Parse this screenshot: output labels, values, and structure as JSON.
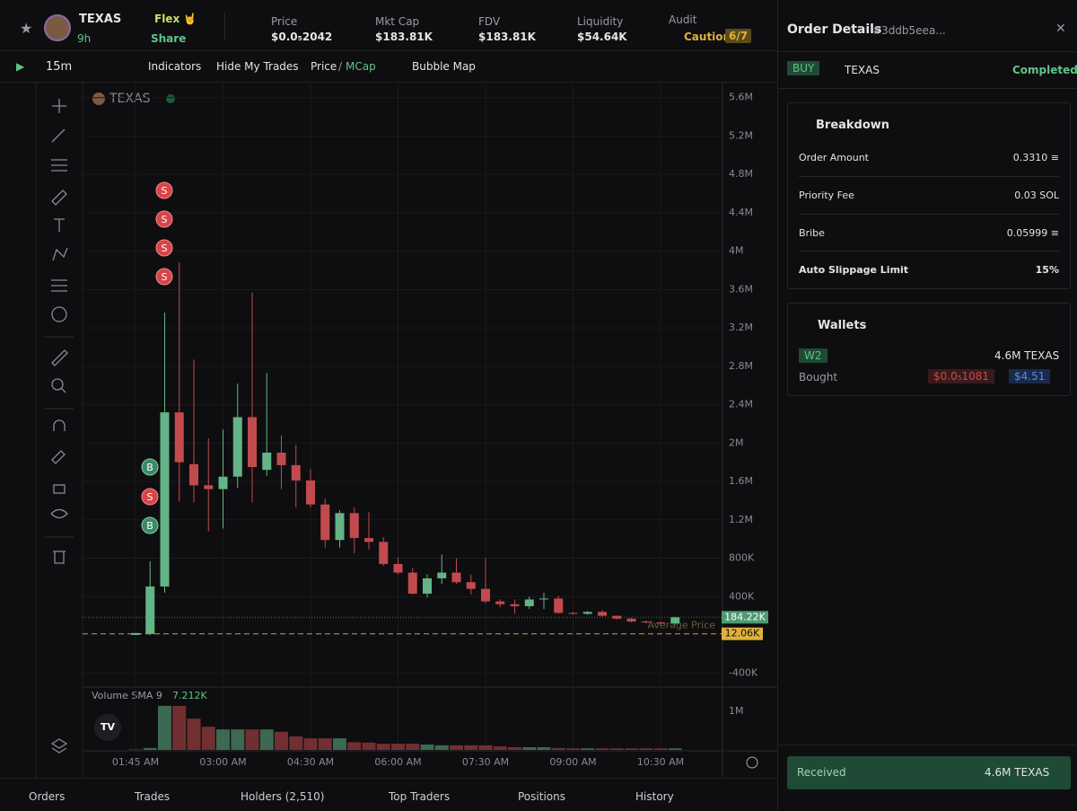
{
  "header": {
    "token": "TEXAS",
    "flex": "Flex 🤘",
    "age": "9h",
    "share": "Share",
    "stats": [
      {
        "label": "Price",
        "value": "$0.0₅2042"
      },
      {
        "label": "Mkt Cap",
        "value": "$183.81K"
      },
      {
        "label": "FDV",
        "value": "$183.81K"
      },
      {
        "label": "Liquidity",
        "value": "$54.64K"
      }
    ],
    "audit": {
      "label": "Audit",
      "status": "Caution",
      "score": "6/7"
    }
  },
  "toolbar": {
    "interval": "15m",
    "indicators": "Indicators",
    "hide_trades": "Hide My Trades",
    "price": "Price",
    "separator": "/",
    "mcap": "MCap",
    "bubble_map": "Bubble Map"
  },
  "chart": {
    "type": "candlestick",
    "legend": "TEXAS",
    "up_color": "#63b487",
    "down_color": "#c24a4e",
    "ylim": [
      -543000,
      5747000
    ],
    "yticks": [
      {
        "value": 5600000,
        "label": "5.6M"
      },
      {
        "value": 5200000,
        "label": "5.2M"
      },
      {
        "value": 4800000,
        "label": "4.8M"
      },
      {
        "value": 4400000,
        "label": "4.4M"
      },
      {
        "value": 4000000,
        "label": "4M"
      },
      {
        "value": 3600000,
        "label": "3.6M"
      },
      {
        "value": 3200000,
        "label": "3.2M"
      },
      {
        "value": 2800000,
        "label": "2.8M"
      },
      {
        "value": 2400000,
        "label": "2.4M"
      },
      {
        "value": 2000000,
        "label": "2M"
      },
      {
        "value": 1600000,
        "label": "1.6M"
      },
      {
        "value": 1200000,
        "label": "1.2M"
      },
      {
        "value": 800000,
        "label": "800K"
      },
      {
        "value": 400000,
        "label": "400K"
      },
      {
        "value": -400000,
        "label": "-400K"
      }
    ],
    "time_labels": [
      "01:45 AM",
      "03:00 AM",
      "04:30 AM",
      "06:00 AM",
      "07:30 AM",
      "09:00 AM",
      "10:30 AM"
    ],
    "open": [
      0,
      10000,
      505000,
      2320000,
      1780000,
      1560000,
      1520000,
      1650000,
      2270000,
      1720000,
      1900000,
      1770000,
      1610000,
      1360000,
      990000,
      1270000,
      1010000,
      970000,
      740000,
      650000,
      430000,
      590000,
      650000,
      550000,
      480000,
      350000,
      320000,
      300000,
      370000,
      380000,
      230000,
      220000,
      240000,
      200000,
      170000,
      140000,
      130000,
      120000
    ],
    "high": [
      20000,
      767000,
      3360000,
      3880000,
      2870000,
      2050000,
      2140000,
      2620000,
      3570000,
      2730000,
      2080000,
      1980000,
      1730000,
      1420000,
      1300000,
      1330000,
      1280000,
      1020000,
      810000,
      700000,
      630000,
      840000,
      800000,
      630000,
      800000,
      370000,
      370000,
      400000,
      440000,
      410000,
      240000,
      250000,
      260000,
      200000,
      180000,
      150000,
      140000,
      190000
    ],
    "low": [
      0,
      0,
      440000,
      1390000,
      1380000,
      1080000,
      1110000,
      1530000,
      1380000,
      1660000,
      1520000,
      1330000,
      1330000,
      910000,
      910000,
      850000,
      890000,
      720000,
      630000,
      420000,
      390000,
      530000,
      530000,
      420000,
      330000,
      290000,
      220000,
      270000,
      270000,
      220000,
      210000,
      210000,
      190000,
      160000,
      130000,
      120000,
      110000,
      110000
    ],
    "close": [
      20000,
      505000,
      2320000,
      1800000,
      1560000,
      1520000,
      1650000,
      2270000,
      1750000,
      1900000,
      1770000,
      1610000,
      1360000,
      990000,
      1270000,
      1010000,
      970000,
      740000,
      650000,
      430000,
      590000,
      650000,
      550000,
      480000,
      350000,
      320000,
      300000,
      370000,
      380000,
      230000,
      220000,
      240000,
      200000,
      170000,
      140000,
      130000,
      120000,
      184220
    ],
    "volume": {
      "label": "Volume SMA 9",
      "sma": "7.212K",
      "ylim": [
        0,
        1510000
      ],
      "yticks": [
        {
          "value": 1000000,
          "label": "1M"
        }
      ],
      "values": [
        10000,
        50000,
        1140000,
        1140000,
        810000,
        600000,
        530000,
        530000,
        530000,
        530000,
        470000,
        350000,
        300000,
        300000,
        300000,
        200000,
        190000,
        160000,
        160000,
        160000,
        140000,
        120000,
        120000,
        120000,
        120000,
        90000,
        70000,
        70000,
        70000,
        50000,
        40000,
        40000,
        40000,
        40000,
        40000,
        40000,
        40000,
        40000
      ]
    },
    "last_price": {
      "value": 184220,
      "tag": "184.22K"
    },
    "average_price": {
      "label": "Average Price",
      "value": 12060,
      "tag": "12.06K"
    },
    "markers": [
      {
        "label": "S"
      },
      {
        "label": "S"
      },
      {
        "label": "S"
      },
      {
        "label": "S"
      },
      {
        "label": "B"
      },
      {
        "label": "S"
      },
      {
        "label": "B"
      }
    ]
  },
  "order": {
    "title": "Order Details",
    "id": "#3ddb5eea...",
    "side": "BUY",
    "token": "TEXAS",
    "status": "Completed",
    "breakdown": {
      "title": "Breakdown",
      "rows": [
        {
          "label": "Order Amount",
          "value": "0.3310 ≡"
        },
        {
          "label": "Priority Fee",
          "value": "0.03 SOL"
        },
        {
          "label": "Bribe",
          "value": "0.05999 ≡"
        },
        {
          "label": "Auto Slippage Limit",
          "value": "15%"
        }
      ]
    },
    "wallets": {
      "title": "Wallets",
      "wallet": "W2",
      "amount": "4.6M TEXAS",
      "action": "Bought",
      "price": "$0.0₅1081",
      "usd": "$4.51"
    },
    "received": {
      "label": "Received",
      "amount": "4.6M TEXAS"
    }
  },
  "tabs": [
    "Orders",
    "Trades",
    "Holders (2,510)",
    "Top Traders",
    "Positions",
    "History"
  ]
}
